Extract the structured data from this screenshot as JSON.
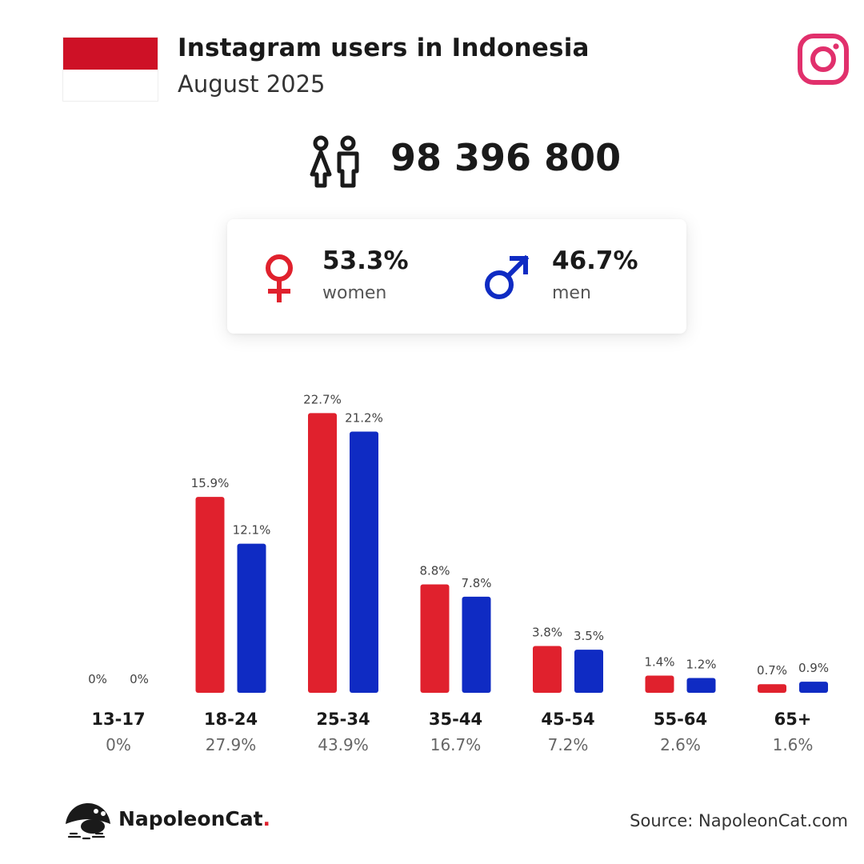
{
  "header": {
    "title": "Instagram users in Indonesia",
    "subtitle": "August 2025"
  },
  "total_users": "98 396 800",
  "gender": {
    "women": {
      "pct": "53.3%",
      "label": "women"
    },
    "men": {
      "pct": "46.7%",
      "label": "men"
    }
  },
  "colors": {
    "women": "#e0212d",
    "men": "#0f2bc3",
    "instagram": "#e1306c",
    "flag_red": "#ce1126"
  },
  "icons": [
    "indonesia-flag",
    "instagram-icon",
    "users-icon",
    "female-icon",
    "male-icon",
    "napoleoncat-logo-icon"
  ],
  "footer": {
    "brand": "NapoleonCat",
    "brand_dot": ".",
    "source": "Source: NapoleonCat.com"
  },
  "chart_data": {
    "type": "bar",
    "title": "",
    "xlabel": "",
    "ylabel": "",
    "ylim": [
      0,
      23
    ],
    "grid": false,
    "legend": "none",
    "categories": [
      "13-17",
      "18-24",
      "25-34",
      "35-44",
      "45-54",
      "55-64",
      "65+"
    ],
    "category_totals": [
      "0%",
      "27.9%",
      "43.9%",
      "16.7%",
      "7.2%",
      "2.6%",
      "1.6%"
    ],
    "series": [
      {
        "key": "women",
        "values": [
          0,
          15.9,
          22.7,
          8.8,
          3.8,
          1.4,
          0.7
        ],
        "labels": [
          "0%",
          "15.9%",
          "22.7%",
          "8.8%",
          "3.8%",
          "1.4%",
          "0.7%"
        ]
      },
      {
        "key": "men",
        "values": [
          0,
          12.1,
          21.2,
          7.8,
          3.5,
          1.2,
          0.9
        ],
        "labels": [
          "0%",
          "12.1%",
          "21.2%",
          "7.8%",
          "3.5%",
          "1.2%",
          "0.9%"
        ]
      }
    ]
  }
}
